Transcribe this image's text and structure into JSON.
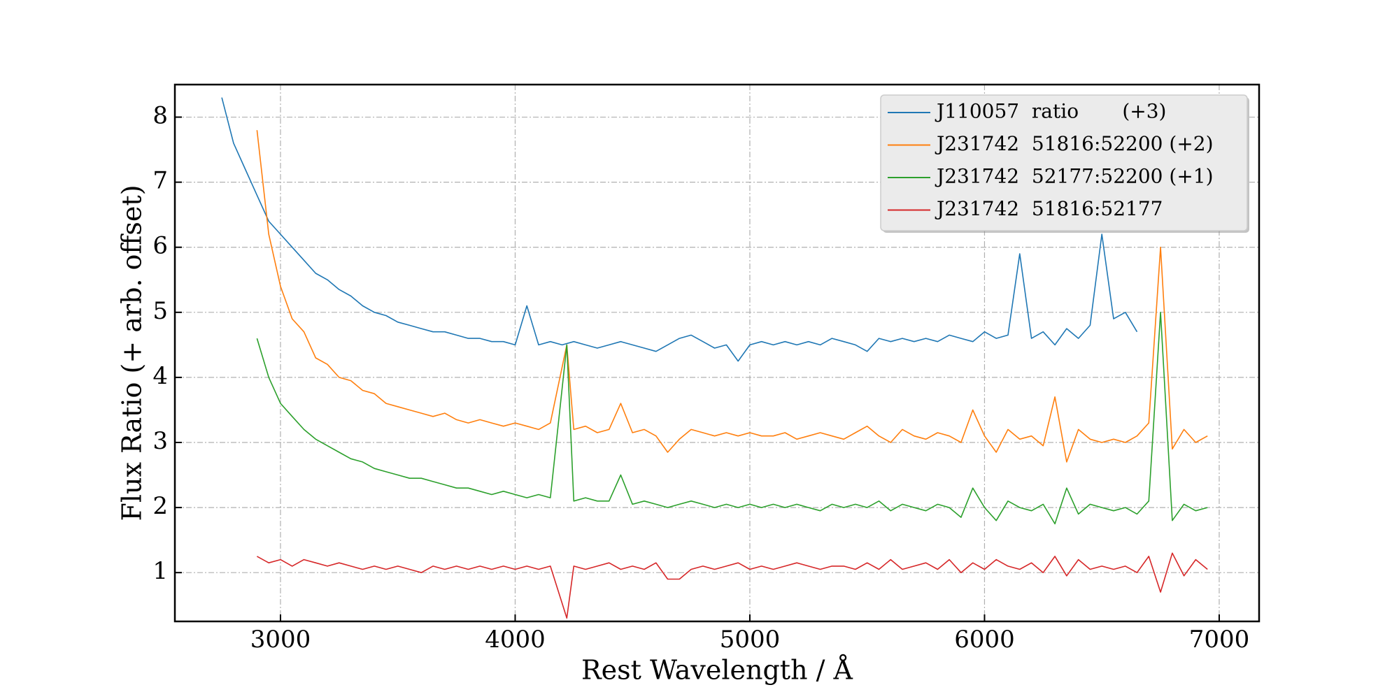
{
  "chart_data": {
    "type": "line",
    "xlabel": "Rest Wavelength / Å",
    "ylabel": "Flux Ratio (+ arb. offset)",
    "xlim": [
      2550,
      7170
    ],
    "ylim": [
      0.25,
      8.5
    ],
    "xticks": [
      3000,
      4000,
      5000,
      6000,
      7000
    ],
    "yticks": [
      1,
      2,
      3,
      4,
      5,
      6,
      7,
      8
    ],
    "grid": true,
    "legend": "upper right",
    "series": [
      {
        "name": "J110057  ratio       (+3)",
        "color": "#1f77b4",
        "x": [
          2750,
          2800,
          2850,
          2900,
          2950,
          3000,
          3050,
          3100,
          3150,
          3200,
          3250,
          3300,
          3350,
          3400,
          3450,
          3500,
          3550,
          3600,
          3650,
          3700,
          3750,
          3800,
          3850,
          3900,
          3950,
          4000,
          4050,
          4100,
          4150,
          4200,
          4250,
          4300,
          4350,
          4400,
          4450,
          4500,
          4550,
          4600,
          4650,
          4700,
          4750,
          4800,
          4850,
          4900,
          4950,
          5000,
          5050,
          5100,
          5150,
          5200,
          5250,
          5300,
          5350,
          5400,
          5450,
          5500,
          5550,
          5600,
          5650,
          5700,
          5750,
          5800,
          5850,
          5900,
          5950,
          6000,
          6050,
          6100,
          6150,
          6200,
          6250,
          6300,
          6350,
          6400,
          6450,
          6500,
          6550,
          6600,
          6650
        ],
        "values": [
          8.3,
          7.6,
          7.2,
          6.8,
          6.4,
          6.2,
          6.0,
          5.8,
          5.6,
          5.5,
          5.35,
          5.25,
          5.1,
          5.0,
          4.95,
          4.85,
          4.8,
          4.75,
          4.7,
          4.7,
          4.65,
          4.6,
          4.6,
          4.55,
          4.55,
          4.5,
          5.1,
          4.5,
          4.55,
          4.5,
          4.55,
          4.5,
          4.45,
          4.5,
          4.55,
          4.5,
          4.45,
          4.4,
          4.5,
          4.6,
          4.65,
          4.55,
          4.45,
          4.5,
          4.25,
          4.5,
          4.55,
          4.5,
          4.55,
          4.5,
          4.55,
          4.5,
          4.6,
          4.55,
          4.5,
          4.4,
          4.6,
          4.55,
          4.6,
          4.55,
          4.6,
          4.55,
          4.65,
          4.6,
          4.55,
          4.7,
          4.6,
          4.65,
          5.9,
          4.6,
          4.7,
          4.5,
          4.75,
          4.6,
          4.8,
          6.2,
          4.9,
          5.0,
          4.7
        ]
      },
      {
        "name": "J231742  51816:52200 (+2)",
        "color": "#ff7f0e",
        "x": [
          2900,
          2950,
          3000,
          3050,
          3100,
          3150,
          3200,
          3250,
          3300,
          3350,
          3400,
          3450,
          3500,
          3550,
          3600,
          3650,
          3700,
          3750,
          3800,
          3850,
          3900,
          3950,
          4000,
          4050,
          4100,
          4150,
          4220,
          4250,
          4300,
          4350,
          4400,
          4450,
          4500,
          4550,
          4600,
          4650,
          4700,
          4750,
          4800,
          4850,
          4900,
          4950,
          5000,
          5050,
          5100,
          5150,
          5200,
          5250,
          5300,
          5350,
          5400,
          5450,
          5500,
          5550,
          5600,
          5650,
          5700,
          5750,
          5800,
          5850,
          5900,
          5950,
          6000,
          6050,
          6100,
          6150,
          6200,
          6250,
          6300,
          6350,
          6400,
          6450,
          6500,
          6550,
          6600,
          6650,
          6700,
          6750,
          6800,
          6850,
          6900,
          6950
        ],
        "values": [
          7.8,
          6.2,
          5.4,
          4.9,
          4.7,
          4.3,
          4.2,
          4.0,
          3.95,
          3.8,
          3.75,
          3.6,
          3.55,
          3.5,
          3.45,
          3.4,
          3.45,
          3.35,
          3.3,
          3.35,
          3.3,
          3.25,
          3.3,
          3.25,
          3.2,
          3.3,
          4.5,
          3.2,
          3.25,
          3.15,
          3.2,
          3.6,
          3.15,
          3.2,
          3.1,
          2.85,
          3.05,
          3.2,
          3.15,
          3.1,
          3.15,
          3.1,
          3.15,
          3.1,
          3.1,
          3.15,
          3.05,
          3.1,
          3.15,
          3.1,
          3.05,
          3.15,
          3.25,
          3.1,
          3.0,
          3.2,
          3.1,
          3.05,
          3.15,
          3.1,
          3.0,
          3.5,
          3.1,
          2.85,
          3.2,
          3.05,
          3.1,
          2.95,
          3.7,
          2.7,
          3.2,
          3.05,
          3.0,
          3.05,
          3.0,
          3.1,
          3.3,
          6.0,
          2.9,
          3.2,
          3.0,
          3.1
        ]
      },
      {
        "name": "J231742  52177:52200 (+1)",
        "color": "#2ca02c",
        "x": [
          2900,
          2950,
          3000,
          3050,
          3100,
          3150,
          3200,
          3250,
          3300,
          3350,
          3400,
          3450,
          3500,
          3550,
          3600,
          3650,
          3700,
          3750,
          3800,
          3850,
          3900,
          3950,
          4000,
          4050,
          4100,
          4150,
          4220,
          4250,
          4300,
          4350,
          4400,
          4450,
          4500,
          4550,
          4600,
          4650,
          4700,
          4750,
          4800,
          4850,
          4900,
          4950,
          5000,
          5050,
          5100,
          5150,
          5200,
          5250,
          5300,
          5350,
          5400,
          5450,
          5500,
          5550,
          5600,
          5650,
          5700,
          5750,
          5800,
          5850,
          5900,
          5950,
          6000,
          6050,
          6100,
          6150,
          6200,
          6250,
          6300,
          6350,
          6400,
          6450,
          6500,
          6550,
          6600,
          6650,
          6700,
          6750,
          6800,
          6850,
          6900,
          6950
        ],
        "values": [
          4.6,
          4.0,
          3.6,
          3.4,
          3.2,
          3.05,
          2.95,
          2.85,
          2.75,
          2.7,
          2.6,
          2.55,
          2.5,
          2.45,
          2.45,
          2.4,
          2.35,
          2.3,
          2.3,
          2.25,
          2.2,
          2.25,
          2.2,
          2.15,
          2.2,
          2.15,
          4.5,
          2.1,
          2.15,
          2.1,
          2.1,
          2.5,
          2.05,
          2.1,
          2.05,
          2.0,
          2.05,
          2.1,
          2.05,
          2.0,
          2.05,
          2.0,
          2.05,
          2.0,
          2.05,
          2.0,
          2.05,
          2.0,
          1.95,
          2.05,
          2.0,
          2.05,
          2.0,
          2.1,
          1.95,
          2.05,
          2.0,
          1.95,
          2.05,
          2.0,
          1.85,
          2.3,
          2.0,
          1.8,
          2.1,
          2.0,
          1.95,
          2.05,
          1.75,
          2.3,
          1.9,
          2.05,
          2.0,
          1.95,
          2.0,
          1.9,
          2.1,
          5.0,
          1.8,
          2.05,
          1.95,
          2.0
        ]
      },
      {
        "name": "J231742  51816:52177",
        "color": "#d62728",
        "x": [
          2900,
          2950,
          3000,
          3050,
          3100,
          3150,
          3200,
          3250,
          3300,
          3350,
          3400,
          3450,
          3500,
          3550,
          3600,
          3650,
          3700,
          3750,
          3800,
          3850,
          3900,
          3950,
          4000,
          4050,
          4100,
          4150,
          4220,
          4250,
          4300,
          4350,
          4400,
          4450,
          4500,
          4550,
          4600,
          4650,
          4700,
          4750,
          4800,
          4850,
          4900,
          4950,
          5000,
          5050,
          5100,
          5150,
          5200,
          5250,
          5300,
          5350,
          5400,
          5450,
          5500,
          5550,
          5600,
          5650,
          5700,
          5750,
          5800,
          5850,
          5900,
          5950,
          6000,
          6050,
          6100,
          6150,
          6200,
          6250,
          6300,
          6350,
          6400,
          6450,
          6500,
          6550,
          6600,
          6650,
          6700,
          6750,
          6800,
          6850,
          6900,
          6950
        ],
        "values": [
          1.25,
          1.15,
          1.2,
          1.1,
          1.2,
          1.15,
          1.1,
          1.15,
          1.1,
          1.05,
          1.1,
          1.05,
          1.1,
          1.05,
          1.0,
          1.1,
          1.05,
          1.1,
          1.05,
          1.1,
          1.05,
          1.1,
          1.05,
          1.1,
          1.05,
          1.1,
          0.3,
          1.1,
          1.05,
          1.1,
          1.15,
          1.05,
          1.1,
          1.05,
          1.15,
          0.9,
          0.9,
          1.05,
          1.1,
          1.05,
          1.1,
          1.15,
          1.05,
          1.1,
          1.05,
          1.1,
          1.15,
          1.1,
          1.05,
          1.1,
          1.1,
          1.05,
          1.15,
          1.05,
          1.2,
          1.05,
          1.1,
          1.15,
          1.05,
          1.2,
          1.0,
          1.15,
          1.05,
          1.2,
          1.1,
          1.05,
          1.15,
          1.0,
          1.25,
          0.95,
          1.2,
          1.05,
          1.1,
          1.05,
          1.1,
          1.0,
          1.25,
          0.7,
          1.3,
          0.95,
          1.2,
          1.05
        ]
      }
    ]
  }
}
